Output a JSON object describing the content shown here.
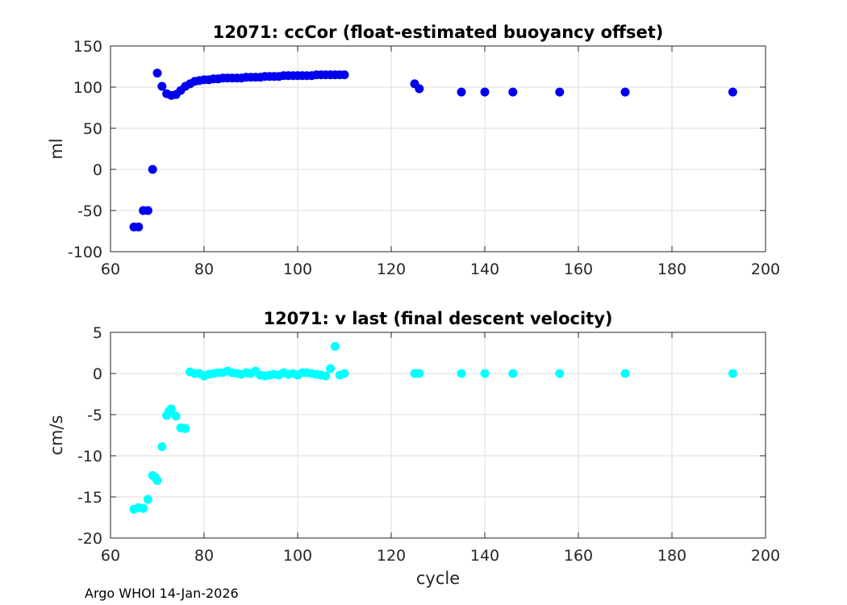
{
  "chart_data": [
    {
      "type": "scatter",
      "title": "12071: ccCor (float-estimated buoyancy offset)",
      "xlabel": "",
      "ylabel": "ml",
      "xlim": [
        60,
        200
      ],
      "ylim": [
        -100,
        150
      ],
      "xticks": [
        60,
        80,
        100,
        120,
        140,
        160,
        180,
        200
      ],
      "yticks": [
        -100,
        -50,
        0,
        50,
        100,
        150
      ],
      "grid": true,
      "color": "#0000ee",
      "x": [
        65,
        66,
        67,
        68,
        69,
        70,
        71,
        72,
        73,
        74,
        75,
        76,
        77,
        78,
        79,
        80,
        81,
        82,
        83,
        84,
        85,
        86,
        87,
        88,
        89,
        90,
        91,
        92,
        93,
        94,
        95,
        96,
        97,
        98,
        99,
        100,
        101,
        102,
        103,
        104,
        105,
        106,
        107,
        108,
        109,
        110,
        125,
        126,
        135,
        140,
        146,
        156,
        170,
        193
      ],
      "y": [
        -70,
        -70,
        -50,
        -50,
        0,
        117,
        101,
        92,
        90,
        91,
        96,
        101,
        104,
        107,
        108,
        109,
        109,
        110,
        110,
        111,
        111,
        111,
        111,
        111,
        112,
        112,
        112,
        112,
        113,
        113,
        113,
        113,
        114,
        114,
        114,
        114,
        114,
        114,
        114,
        115,
        115,
        115,
        115,
        115,
        115,
        115,
        104,
        98,
        94,
        94,
        94,
        94,
        94,
        94
      ]
    },
    {
      "type": "scatter",
      "title": "12071: v last (final descent velocity)",
      "xlabel": "cycle",
      "ylabel": "cm/s",
      "xlim": [
        60,
        200
      ],
      "ylim": [
        -20,
        5
      ],
      "xticks": [
        60,
        80,
        100,
        120,
        140,
        160,
        180,
        200
      ],
      "yticks": [
        -20,
        -15,
        -10,
        -5,
        0,
        5
      ],
      "grid": true,
      "color": "#00ffff",
      "x": [
        65,
        66,
        67,
        68,
        69,
        69.5,
        70,
        71,
        72,
        72.5,
        73,
        74,
        75,
        76,
        77,
        78,
        79,
        80,
        81,
        82,
        83,
        84,
        85,
        86,
        87,
        88,
        89,
        90,
        91,
        92,
        93,
        94,
        95,
        96,
        97,
        98,
        99,
        100,
        101,
        102,
        103,
        104,
        105,
        106,
        107,
        108,
        109,
        110,
        125,
        126,
        135,
        140,
        146,
        156,
        170,
        193
      ],
      "y": [
        -16.5,
        -16.3,
        -16.4,
        -15.3,
        -12.4,
        -12.6,
        -13,
        -8.9,
        -5.1,
        -4.6,
        -4.3,
        -5.2,
        -6.6,
        -6.7,
        0.2,
        0,
        0,
        -0.3,
        -0.1,
        0,
        0.1,
        0.1,
        0.3,
        0.1,
        0,
        -0.1,
        0.1,
        0,
        0.3,
        -0.2,
        -0.3,
        -0.2,
        -0.1,
        -0.2,
        0.1,
        -0.1,
        0,
        -0.2,
        0.1,
        0.1,
        0,
        -0.1,
        -0.2,
        -0.3,
        0.6,
        3.3,
        -0.2,
        0,
        0,
        0,
        0,
        0,
        0,
        0,
        0,
        0
      ]
    }
  ],
  "footer": "Argo WHOI 14-Jan-2026"
}
